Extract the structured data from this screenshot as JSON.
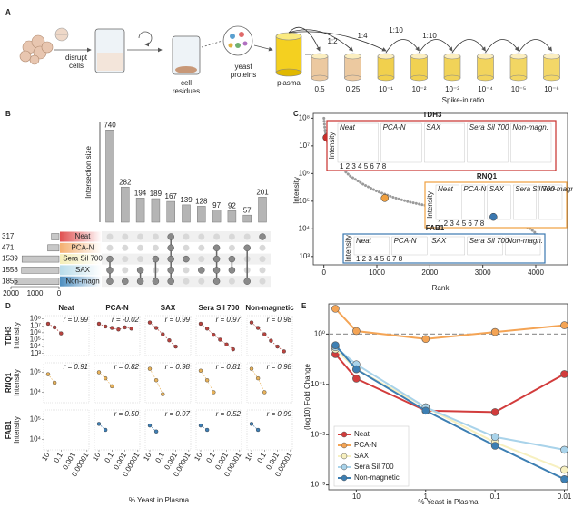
{
  "panel_a": {
    "label": "A",
    "steps": [
      {
        "lines": [
          "disrupt",
          "cells"
        ]
      },
      {
        "lines": [
          "cell",
          "residues"
        ]
      },
      {
        "lines": [
          "yeast",
          "proteins"
        ]
      },
      {
        "lines": [
          "plasma"
        ]
      }
    ],
    "dilutions": [
      "1:2",
      "1:4",
      "1:10",
      "1:10"
    ],
    "ratios": [
      "0.5",
      "0.25",
      "10⁻¹",
      "10⁻²",
      "10⁻³",
      "10⁻⁴",
      "10⁻⁵",
      "10⁻⁶"
    ],
    "ratio_title": "Spike-in ratio"
  },
  "chart_data": [
    {
      "type": "upset",
      "label": "B",
      "ylabel": "Intersection size",
      "ylim": [
        0,
        800
      ],
      "values": [
        740,
        282,
        194,
        189,
        167,
        139,
        128,
        97,
        92,
        57,
        201
      ],
      "membership": [
        [
          2,
          3,
          4
        ],
        [
          4
        ],
        [
          3,
          4
        ],
        [
          2,
          4
        ],
        [
          0,
          1,
          2,
          3,
          4
        ],
        [
          2
        ],
        [
          3
        ],
        [
          1,
          2,
          3,
          4
        ],
        [
          2,
          3
        ],
        [
          1,
          4
        ],
        [
          0
        ]
      ],
      "sets": [
        "Neat",
        "PCA-N",
        "Sera Sil 700",
        "SAX",
        "Non-magn"
      ],
      "set_sizes": [
        317,
        471,
        1539,
        1558,
        1855
      ],
      "set_colors": [
        "#e05050",
        "#f4b070",
        "#f5eeb8",
        "#b9dcea",
        "#4e8fc0"
      ],
      "set_xlim": [
        0,
        2000
      ],
      "set_xticks": [
        2000,
        1000,
        0
      ],
      "color": "#b5b5b5"
    },
    {
      "type": "rank",
      "label": "C",
      "ylabel": "Intensity",
      "xlabel": "Rank",
      "log_y": true,
      "xlim": [
        -200,
        4600
      ],
      "ylim": [
        500,
        150000000
      ],
      "xticks": [
        0,
        1000,
        2000,
        3000,
        4000
      ],
      "yticks": [
        {
          "value": 1000,
          "label": "10³"
        },
        {
          "value": 10000,
          "label": "10⁴"
        },
        {
          "value": 100000,
          "label": "10⁵"
        },
        {
          "value": 1000000,
          "label": "10⁶"
        },
        {
          "value": 10000000,
          "label": "10⁷"
        },
        {
          "value": 100000000,
          "label": "10⁸"
        }
      ],
      "x": [
        1,
        20,
        60,
        150,
        300,
        500,
        750,
        1000,
        1300,
        1600,
        2000,
        2400,
        2800,
        3200,
        3500,
        3750,
        3900,
        4000,
        4080,
        4150
      ],
      "values": [
        100000000,
        40000000,
        15000000,
        5000000,
        1800000,
        800000,
        400000,
        230000,
        140000,
        95000,
        65000,
        48000,
        36000,
        27000,
        20000,
        14000,
        10000,
        7000,
        4000,
        1500
      ],
      "color": "#9a9a9a",
      "highlights": [
        {
          "name": "TDH3",
          "rank": 50,
          "intensity": 20000000,
          "color": "#c8302c"
        },
        {
          "name": "RNQ1",
          "rank": 1150,
          "intensity": 130000,
          "color": "#f0a040"
        },
        {
          "name": "FAB1",
          "rank": 3200,
          "intensity": 27000,
          "color": "#3b78b0"
        }
      ],
      "inset_titles": [
        "Neat",
        "PCA-N",
        "SAX",
        "Sera Sil 700",
        "Non-magn."
      ],
      "inset_ylabel": "Intensity",
      "inset_xticks": "1 2 3 4 5 6 7 8"
    },
    {
      "type": "scatter_grid",
      "label": "D",
      "xlabel": "% Yeast in Plasma",
      "log_x": true,
      "x": [
        10,
        1,
        0.1,
        0.01,
        0.001,
        0.0001,
        1e-05
      ],
      "xlim": [
        50,
        5e-06
      ],
      "xticks": [
        10,
        0.1,
        0.001,
        1e-05
      ],
      "columns": [
        "Neat",
        "PCA-N",
        "SAX",
        "Sera Sil 700",
        "Non-magnetic"
      ],
      "rows": [
        {
          "name": "TDH3",
          "ylabel": "Intensity",
          "color": "#b8433f",
          "ylim": [
            500,
            300000000
          ],
          "yticks": [
            {
              "value": 1000,
              "label": "10³"
            },
            {
              "value": 10000,
              "label": "10⁴"
            },
            {
              "value": 100000,
              "label": "10⁵"
            },
            {
              "value": 1000000,
              "label": "10⁶"
            },
            {
              "value": 10000000,
              "label": "10⁷"
            },
            {
              "value": 100000000,
              "label": "10⁸"
            }
          ],
          "cells": [
            {
              "r_label": "r = 0.99",
              "values": [
                20000000,
                6000000,
                800000,
                null,
                null,
                null,
                null
              ]
            },
            {
              "r_label": "r = -0.02",
              "values": [
                20000000,
                8000000,
                5000000,
                3000000,
                6000000,
                4000000,
                null
              ]
            },
            {
              "r_label": "r = 0.99",
              "values": [
                30000000,
                5000000,
                600000,
                80000,
                10000,
                null,
                null
              ]
            },
            {
              "r_label": "r = 0.97",
              "values": [
                20000000,
                4000000,
                500000,
                100000,
                20000,
                4000,
                null
              ]
            },
            {
              "r_label": "r = 0.98",
              "values": [
                30000000,
                5000000,
                600000,
                70000,
                10000,
                2000,
                null
              ]
            }
          ]
        },
        {
          "name": "RNQ1",
          "ylabel": "Intensity",
          "color": "#e8b25a",
          "ylim": [
            3000,
            300000
          ],
          "yticks": [
            {
              "value": 10000,
              "label": "10⁴"
            },
            {
              "value": 100000,
              "label": "10⁵"
            }
          ],
          "cells": [
            {
              "r_label": "r = 0.91",
              "values": [
                80000,
                30000,
                null,
                null,
                null,
                null,
                null
              ]
            },
            {
              "r_label": "r = 0.82",
              "values": [
                100000,
                50000,
                20000,
                null,
                null,
                null,
                null
              ]
            },
            {
              "r_label": "r = 0.98",
              "values": [
                150000,
                40000,
                8000,
                null,
                null,
                null,
                null
              ]
            },
            {
              "r_label": "r = 0.81",
              "values": [
                120000,
                40000,
                10000,
                null,
                null,
                null,
                null
              ]
            },
            {
              "r_label": "r = 0.98",
              "values": [
                150000,
                50000,
                10000,
                null,
                null,
                null,
                null
              ]
            }
          ]
        },
        {
          "name": "FAB1",
          "ylabel": "Intensity",
          "color": "#3f7fb5",
          "ylim": [
            3000,
            300000
          ],
          "yticks": [
            {
              "value": 10000,
              "label": "10⁴"
            },
            {
              "value": 100000,
              "label": "10⁵"
            }
          ],
          "cells": [
            null,
            {
              "r_label": "r = 0.50",
              "values": [
                60000,
                30000,
                null,
                null,
                null,
                null,
                null
              ]
            },
            {
              "r_label": "r = 0.97",
              "values": [
                50000,
                25000,
                null,
                null,
                null,
                null,
                null
              ]
            },
            {
              "r_label": "r = 0.52",
              "values": [
                50000,
                30000,
                null,
                null,
                null,
                null,
                null
              ]
            },
            {
              "r_label": "r = 0.99",
              "values": [
                60000,
                30000,
                null,
                null,
                null,
                null,
                null
              ]
            }
          ]
        }
      ]
    },
    {
      "type": "line",
      "label": "E",
      "ylabel": "(log10) Fold Change",
      "xlabel": "% Yeast in Plasma",
      "log_x": true,
      "log_y": true,
      "x": [
        20,
        10,
        1,
        0.1,
        0.01
      ],
      "xlim": [
        25,
        0.009
      ],
      "ylim": [
        0.0008,
        4
      ],
      "xticks": [
        10,
        1,
        0.1,
        0.01
      ],
      "yticks": [
        {
          "value": 0.001,
          "label": "10⁻³"
        },
        {
          "value": 0.01,
          "label": "10⁻²"
        },
        {
          "value": 0.1,
          "label": "10⁻¹"
        },
        {
          "value": 1,
          "label": "10⁰"
        }
      ],
      "reference_line": 1,
      "legend": "lower left",
      "series": [
        {
          "name": "Neat",
          "color": "#d23c3c",
          "values": [
            0.4,
            0.13,
            0.03,
            0.028,
            0.16
          ]
        },
        {
          "name": "PCA-N",
          "color": "#f4a455",
          "values": [
            3.2,
            1.15,
            0.8,
            1.1,
            1.5
          ]
        },
        {
          "name": "SAX",
          "color": "#f7f0c0",
          "values": [
            0.5,
            0.2,
            0.035,
            0.007,
            0.002
          ]
        },
        {
          "name": "Sera Sil 700",
          "color": "#a9d3ea",
          "values": [
            0.55,
            0.25,
            0.035,
            0.009,
            0.005
          ]
        },
        {
          "name": "Non-magnetic",
          "color": "#3d7fb3",
          "values": [
            0.6,
            0.2,
            0.03,
            0.006,
            0.0013
          ]
        }
      ]
    }
  ]
}
